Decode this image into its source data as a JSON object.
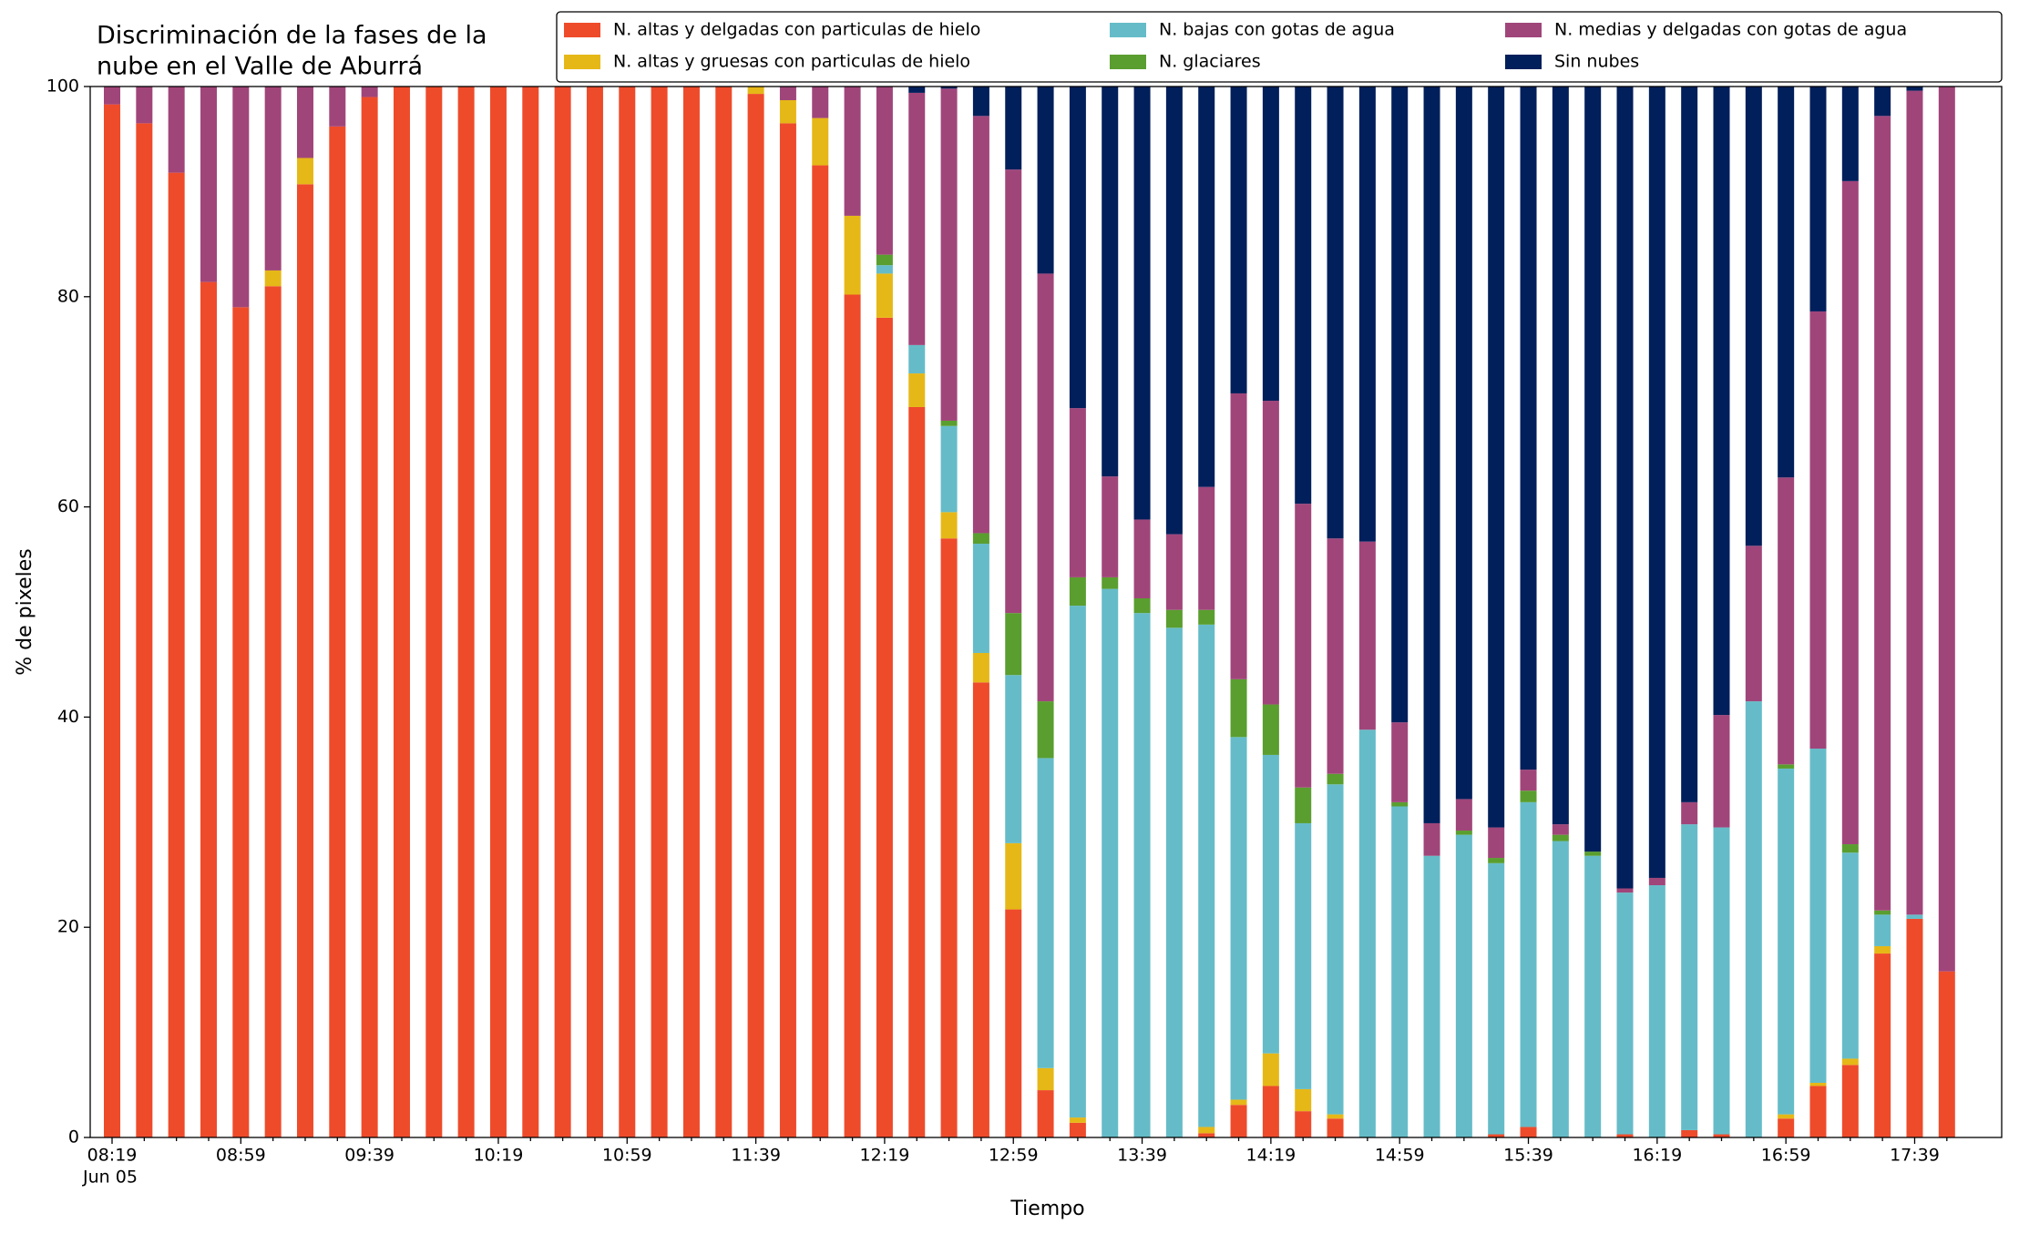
{
  "chart_data": {
    "type": "stacked_bar",
    "title": [
      "Discriminación de la fases de la",
      "nube en el Valle de Aburrá"
    ],
    "x_label": "Tiempo",
    "y_label": "% de pixeles",
    "date_label": "Jun 05",
    "categories": [
      "08:19",
      null,
      null,
      null,
      "08:59",
      null,
      null,
      null,
      "09:39",
      null,
      null,
      null,
      "10:19",
      null,
      null,
      null,
      "10:59",
      null,
      null,
      null,
      "11:39",
      null,
      null,
      null,
      "12:19",
      null,
      null,
      null,
      "12:59",
      null,
      null,
      null,
      "13:39",
      null,
      null,
      null,
      "14:19",
      null,
      null,
      null,
      "14:59",
      null,
      null,
      null,
      "15:39",
      null,
      null,
      null,
      "16:19",
      null,
      null,
      null,
      "16:59",
      null,
      null,
      null,
      "17:39",
      null
    ],
    "ylim": [
      0,
      100
    ],
    "yticks": [
      0,
      20,
      40,
      60,
      80,
      100
    ],
    "legend": "top-right",
    "series": [
      {
        "name": "N. altas y delgadas con particulas de hielo",
        "color": "#ee4b2b",
        "values": [
          98.3,
          96.5,
          91.8,
          81.4,
          79,
          81,
          90.7,
          96.2,
          99,
          100,
          100,
          100,
          100,
          100,
          100,
          100,
          100,
          100,
          100,
          100,
          99.3,
          96.5,
          92.5,
          80.2,
          78,
          69.5,
          57,
          43.3,
          21.7,
          4.5,
          1.4,
          0,
          0,
          0,
          0.4,
          3.1,
          4.9,
          2.5,
          1.8,
          0,
          0,
          0,
          0,
          0.3,
          1,
          0,
          0,
          0.3,
          0,
          0.7,
          0.3,
          0,
          1.8,
          4.9,
          6.9,
          17.5,
          20.8,
          15.8
        ]
      },
      {
        "name": "N. altas y gruesas con particulas de hielo",
        "color": "#e6b817",
        "values": [
          0,
          0,
          0,
          0,
          0,
          1.5,
          2.5,
          0,
          0,
          0,
          0,
          0,
          0,
          0,
          0,
          0,
          0,
          0,
          0,
          0,
          0.7,
          2.2,
          4.5,
          7.5,
          4.2,
          3.2,
          2.5,
          2.8,
          6.3,
          2.1,
          0.5,
          0,
          0,
          0,
          0.6,
          0.5,
          3.1,
          2.1,
          0.4,
          0,
          0,
          0,
          0,
          0,
          0,
          0,
          0,
          0,
          0,
          0,
          0,
          0,
          0.4,
          0.3,
          0.6,
          0.7,
          0,
          0
        ]
      },
      {
        "name": "N. bajas con gotas de agua",
        "color": "#65bcc8",
        "values": [
          0,
          0,
          0,
          0,
          0,
          0,
          0,
          0,
          0,
          0,
          0,
          0,
          0,
          0,
          0,
          0,
          0,
          0,
          0,
          0,
          0,
          0,
          0,
          0,
          0.8,
          2.7,
          8.2,
          10.4,
          16,
          29.5,
          48.7,
          52.2,
          49.9,
          48.5,
          47.8,
          34.5,
          28.4,
          25.3,
          31.4,
          38.8,
          31.5,
          26.8,
          28.8,
          25.8,
          30.9,
          28.2,
          26.8,
          23,
          24,
          29.1,
          29.2,
          41.5,
          32.9,
          31.8,
          19.6,
          3,
          0.4,
          0
        ]
      },
      {
        "name": "N. glaciares",
        "color": "#5a9e2f",
        "values": [
          0,
          0,
          0,
          0,
          0,
          0,
          0,
          0,
          0,
          0,
          0,
          0,
          0,
          0,
          0,
          0,
          0,
          0,
          0,
          0,
          0,
          0,
          0,
          0,
          1,
          0,
          0.5,
          1,
          5.9,
          5.4,
          2.7,
          1.1,
          1.4,
          1.7,
          1.4,
          5.5,
          4.8,
          3.4,
          1,
          0,
          0.4,
          0,
          0.4,
          0.5,
          1.1,
          0.6,
          0.4,
          0,
          0,
          0,
          0,
          0,
          0.4,
          0,
          0.8,
          0.4,
          0,
          0
        ]
      },
      {
        "name": "N. medias y delgadas con gotas de agua",
        "color": "#a0457a",
        "values": [
          1.7,
          3.5,
          8.2,
          18.6,
          21,
          17.5,
          6.8,
          3.8,
          1,
          0,
          0,
          0,
          0,
          0,
          0,
          0,
          0,
          0,
          0,
          0,
          0,
          1.3,
          3,
          12.3,
          16,
          24,
          31.6,
          39.7,
          42.2,
          40.7,
          16.1,
          9.6,
          7.5,
          7.2,
          11.7,
          27.2,
          28.9,
          27,
          22.4,
          17.9,
          7.6,
          3.1,
          3,
          2.9,
          2,
          1,
          0,
          0.4,
          0.7,
          2.1,
          10.7,
          14.8,
          27.3,
          41.6,
          63.1,
          75.6,
          78.4,
          84.2
        ]
      },
      {
        "name": "Sin nubes",
        "color": "#011f5b",
        "values": [
          0,
          0,
          0,
          0,
          0,
          0,
          0,
          0,
          0,
          0,
          0,
          0,
          0,
          0,
          0,
          0,
          0,
          0,
          0,
          0,
          0,
          0,
          0,
          0,
          0,
          0.6,
          0.2,
          2.8,
          7.9,
          17.8,
          30.6,
          37.1,
          41.2,
          42.6,
          38.1,
          29.2,
          29.9,
          39.7,
          43,
          43.3,
          60.5,
          70.1,
          67.8,
          70.5,
          65,
          70.2,
          72.8,
          76.3,
          75.3,
          68.1,
          59.8,
          43.7,
          37.2,
          21.4,
          9,
          2.8,
          0.4,
          0
        ]
      }
    ]
  }
}
